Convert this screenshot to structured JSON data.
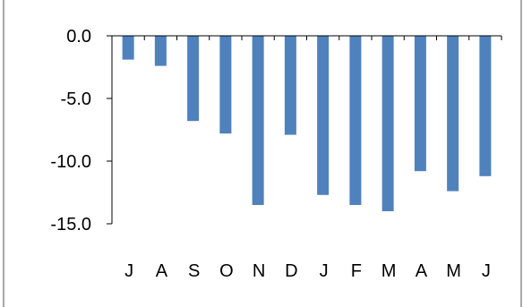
{
  "chart_data": {
    "type": "bar",
    "categories": [
      "J",
      "A",
      "S",
      "O",
      "N",
      "D",
      "J",
      "F",
      "M",
      "A",
      "M",
      "J"
    ],
    "values": [
      -1.9,
      -2.4,
      -6.8,
      -7.8,
      -13.5,
      -7.9,
      -12.7,
      -13.5,
      -14.0,
      -10.8,
      -12.4,
      -11.2
    ],
    "y_ticks": [
      "0.0",
      "-5.0",
      "-10.0",
      "-15.0"
    ],
    "ylim": [
      -15,
      0
    ],
    "title": "",
    "xlabel": "",
    "ylabel": "",
    "grid": false,
    "legend": "none",
    "colors": {
      "bar": "#4f81bd",
      "axis": "#000000",
      "frame": "#8c8c8c",
      "background": "#ffffff"
    }
  }
}
